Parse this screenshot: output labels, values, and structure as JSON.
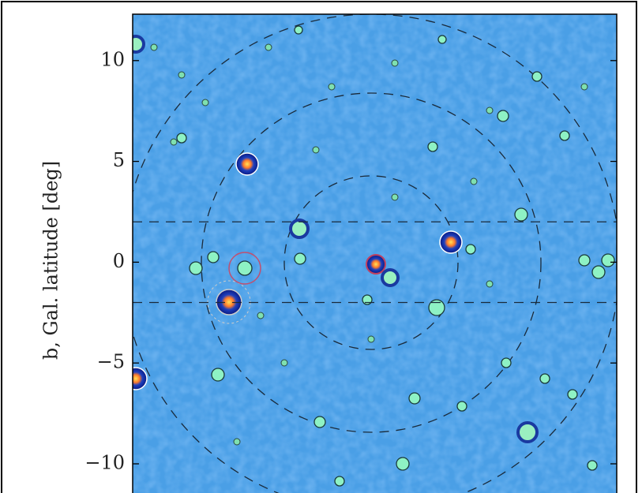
{
  "chart_data": {
    "type": "skymap",
    "ylabel": "b, Gal. latitude [deg]",
    "ylim": [
      -11.33,
      12.3
    ],
    "yticks": [
      10,
      5,
      0,
      {
        "value": -5,
        "label": "−5"
      },
      {
        "value": -10,
        "label": "−10"
      }
    ],
    "reference_lines": [
      2,
      -2
    ]
  }
}
